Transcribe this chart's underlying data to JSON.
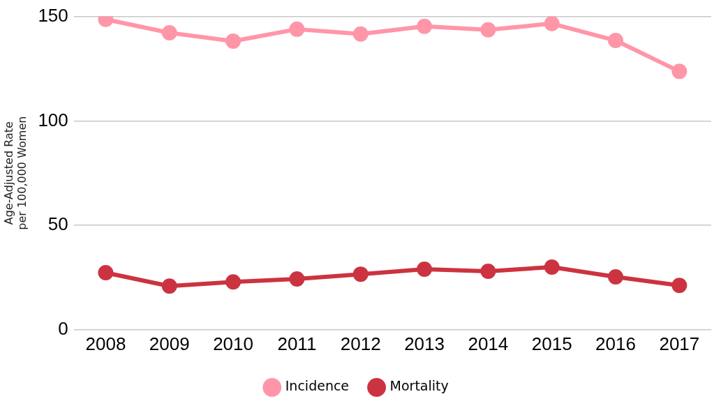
{
  "chart_data": {
    "type": "line",
    "ylabel": "Age-Adjusted Rate\nper 100,000 Women",
    "categories": [
      "2008",
      "2009",
      "2010",
      "2011",
      "2012",
      "2013",
      "2014",
      "2015",
      "2016",
      "2017"
    ],
    "series": [
      {
        "name": "Incidence",
        "color": "#ff96a8",
        "values": [
          148.6,
          142.2,
          138.2,
          143.9,
          141.6,
          145.3,
          143.6,
          146.6,
          138.5,
          123.7
        ]
      },
      {
        "name": "Mortality",
        "color": "#cc3340",
        "values": [
          27.3,
          20.9,
          22.9,
          24.3,
          26.6,
          29.0,
          28.0,
          30.0,
          25.3,
          21.2
        ]
      }
    ],
    "ylim": [
      0,
      150
    ],
    "yticks": [
      0,
      50,
      100,
      150
    ],
    "grid": "y",
    "legend": "bottom",
    "marker": "circle",
    "line_style": "solid"
  }
}
